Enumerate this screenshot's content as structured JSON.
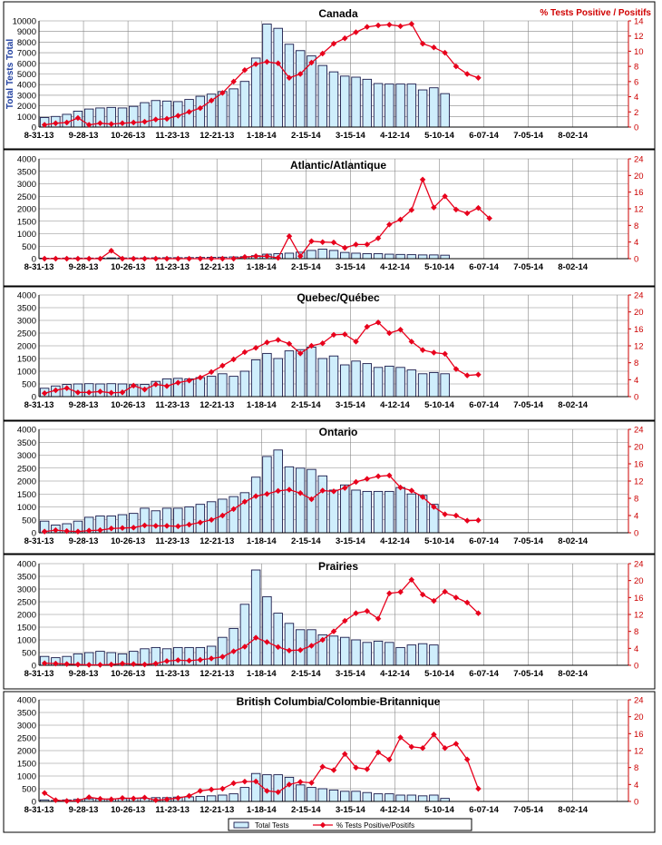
{
  "page": {
    "right_title": "% Tests Positive / Positifs",
    "y_axis_label": "Total Tests Total",
    "legend": {
      "bar_label": "Total Tests",
      "line_label": "% Tests Positive/Positifs"
    }
  },
  "colors": {
    "bar_fill": "#cfeefc",
    "bar_stroke": "#1a1a4a",
    "line": "#e8001c",
    "axis_right": "#cc0000"
  },
  "chart_data": [
    {
      "type": "bar+line",
      "title": "Canada",
      "x_tick_labels": [
        "8-31-13",
        "9-28-13",
        "10-26-13",
        "11-23-13",
        "12-21-13",
        "1-18-14",
        "2-15-14",
        "3-15-14",
        "4-12-14",
        "5-10-14",
        "6-07-14",
        "7-05-14",
        "8-02-14"
      ],
      "weeks": 53,
      "left_axis": {
        "min": 0,
        "max": 10000,
        "step": 1000
      },
      "right_axis": {
        "min": 0,
        "max": 14,
        "step": 2
      },
      "total_tests": [
        900,
        1000,
        1200,
        1500,
        1700,
        1800,
        1850,
        1800,
        1950,
        2300,
        2500,
        2450,
        2400,
        2600,
        2900,
        3100,
        3350,
        3600,
        4300,
        6500,
        9700,
        9300,
        7800,
        7200,
        6700,
        5800,
        5200,
        4800,
        4700,
        4500,
        4100,
        4050,
        4050,
        4050,
        3500,
        3700,
        3150
      ],
      "pct_positive": [
        0.3,
        0.5,
        0.6,
        1.2,
        0.3,
        0.5,
        0.4,
        0.5,
        0.6,
        0.7,
        1.0,
        1.1,
        1.5,
        2.0,
        2.5,
        3.5,
        4.5,
        6.0,
        7.5,
        8.3,
        8.6,
        8.4,
        6.5,
        7.0,
        8.5,
        9.7,
        11.0,
        11.7,
        12.5,
        13.2,
        13.4,
        13.5,
        13.3,
        13.6,
        11.0,
        10.5,
        9.8,
        8.0,
        7.0,
        6.5
      ]
    },
    {
      "type": "bar+line",
      "title": "Atlantic/Atlantique",
      "x_tick_labels": [
        "8-31-13",
        "9-28-13",
        "10-26-13",
        "11-23-13",
        "12-21-13",
        "1-18-14",
        "2-15-14",
        "3-15-14",
        "4-12-14",
        "5-10-14",
        "6-07-14",
        "7-05-14",
        "8-02-14"
      ],
      "weeks": 53,
      "left_axis": {
        "min": 0,
        "max": 4000,
        "step": 500
      },
      "right_axis": {
        "min": 0,
        "max": 24,
        "step": 4
      },
      "total_tests": [
        20,
        20,
        25,
        25,
        25,
        25,
        30,
        30,
        30,
        30,
        35,
        40,
        40,
        45,
        50,
        55,
        60,
        70,
        80,
        120,
        180,
        200,
        220,
        260,
        330,
        380,
        330,
        250,
        220,
        200,
        200,
        180,
        170,
        160,
        150,
        150,
        140
      ],
      "pct_positive": [
        0,
        0,
        0,
        0,
        0,
        0,
        1.9,
        0,
        0,
        0,
        0,
        0,
        0,
        0,
        0,
        0,
        0,
        0,
        0.4,
        0.6,
        0.6,
        0.2,
        5.4,
        0.6,
        4.2,
        4.0,
        3.9,
        2.6,
        3.4,
        3.4,
        4.9,
        8.2,
        9.4,
        11.7,
        19.0,
        12.3,
        15.0,
        11.8,
        10.9,
        12.2,
        9.7
      ]
    },
    {
      "type": "bar+line",
      "title": "Quebec/Québec",
      "x_tick_labels": [
        "8-31-13",
        "9-28-13",
        "10-26-13",
        "11-23-13",
        "12-21-13",
        "1-18-14",
        "2-15-14",
        "3-15-14",
        "4-12-14",
        "5-10-14",
        "6-07-14",
        "7-05-14",
        "8-02-14"
      ],
      "weeks": 53,
      "left_axis": {
        "min": 0,
        "max": 4000,
        "step": 500
      },
      "right_axis": {
        "min": 0,
        "max": 24,
        "step": 4
      },
      "total_tests": [
        330,
        420,
        480,
        500,
        510,
        500,
        510,
        500,
        470,
        480,
        600,
        700,
        720,
        700,
        750,
        800,
        900,
        800,
        1000,
        1450,
        1700,
        1500,
        1800,
        1850,
        1950,
        1500,
        1600,
        1250,
        1400,
        1300,
        1150,
        1200,
        1150,
        1050,
        900,
        950,
        900
      ],
      "pct_positive": [
        0.8,
        1.5,
        2.0,
        1.0,
        1.0,
        1.2,
        0.9,
        1.0,
        2.6,
        1.7,
        2.9,
        2.5,
        3.3,
        3.8,
        4.5,
        5.8,
        7.3,
        8.8,
        10.5,
        11.5,
        12.8,
        13.4,
        12.5,
        10.2,
        12.0,
        12.6,
        14.6,
        14.7,
        13.0,
        16.5,
        17.5,
        15.0,
        15.8,
        13.0,
        11.0,
        10.4,
        10.1,
        6.5,
        5.0,
        5.2
      ]
    },
    {
      "type": "bar+line",
      "title": "Ontario",
      "x_tick_labels": [
        "8-31-13",
        "9-28-13",
        "10-26-13",
        "11-23-13",
        "12-21-13",
        "1-18-14",
        "2-15-14",
        "3-15-14",
        "4-12-14",
        "5-10-14",
        "6-07-14",
        "7-05-14",
        "8-02-14"
      ],
      "weeks": 53,
      "left_axis": {
        "min": 0,
        "max": 4000,
        "step": 500
      },
      "right_axis": {
        "min": 0,
        "max": 24,
        "step": 4
      },
      "total_tests": [
        450,
        300,
        350,
        450,
        600,
        650,
        650,
        700,
        750,
        950,
        850,
        950,
        950,
        1000,
        1100,
        1200,
        1300,
        1400,
        1550,
        2150,
        2950,
        3200,
        2550,
        2500,
        2450,
        2200,
        1650,
        1850,
        1650,
        1600,
        1600,
        1600,
        1750,
        1500,
        1450,
        1100
      ],
      "pct_positive": [
        0.3,
        0.6,
        0.4,
        0.3,
        0.5,
        0.6,
        1.0,
        1.1,
        1.2,
        1.7,
        1.6,
        1.6,
        1.5,
        1.9,
        2.4,
        3.0,
        4.0,
        5.5,
        7.2,
        8.5,
        9.0,
        9.7,
        10.0,
        9.2,
        7.8,
        9.8,
        9.6,
        10.4,
        11.8,
        12.5,
        13.1,
        13.3,
        10.5,
        9.8,
        8.3,
        6.0,
        4.3,
        4.0,
        2.8,
        2.9
      ]
    },
    {
      "type": "bar+line",
      "title": "Prairies",
      "x_tick_labels": [
        "8-31-13",
        "9-28-13",
        "10-26-13",
        "11-23-13",
        "12-21-13",
        "1-18-14",
        "2-15-14",
        "3-15-14",
        "4-12-14",
        "5-10-14",
        "6-07-14",
        "7-05-14",
        "8-02-14"
      ],
      "weeks": 53,
      "left_axis": {
        "min": 0,
        "max": 4000,
        "step": 500
      },
      "right_axis": {
        "min": 0,
        "max": 24,
        "step": 4
      },
      "total_tests": [
        350,
        300,
        350,
        450,
        500,
        550,
        500,
        450,
        550,
        650,
        700,
        650,
        700,
        700,
        700,
        750,
        1100,
        1450,
        2400,
        3750,
        2700,
        2050,
        1650,
        1400,
        1400,
        1200,
        1150,
        1100,
        1000,
        900,
        950,
        900,
        700,
        800,
        850,
        800
      ],
      "pct_positive": [
        0.5,
        0.4,
        0.3,
        0.2,
        0.1,
        0.1,
        0.2,
        0.4,
        0.3,
        0.2,
        0.4,
        1.0,
        1.2,
        1.1,
        1.3,
        1.6,
        2.0,
        3.3,
        4.4,
        6.5,
        5.5,
        4.3,
        3.5,
        3.6,
        4.6,
        6.0,
        8.0,
        10.5,
        12.3,
        12.8,
        11.0,
        17.0,
        17.3,
        20.2,
        16.7,
        15.2,
        17.4,
        16.0,
        14.8,
        12.3
      ]
    },
    {
      "type": "bar+line",
      "title": "British Columbia/Colombie-Britannique",
      "x_tick_labels": [
        "8-31-13",
        "9-28-13",
        "10-26-13",
        "11-23-13",
        "12-21-13",
        "1-18-14",
        "2-15-14",
        "3-15-14",
        "4-12-14",
        "5-10-14",
        "6-07-14",
        "7-05-14",
        "8-02-14"
      ],
      "weeks": 53,
      "left_axis": {
        "min": 0,
        "max": 4000,
        "step": 500
      },
      "right_axis": {
        "min": 0,
        "max": 24,
        "step": 4
      },
      "total_tests": [
        60,
        40,
        60,
        80,
        100,
        100,
        100,
        110,
        130,
        120,
        150,
        150,
        170,
        180,
        200,
        220,
        250,
        300,
        550,
        1100,
        1050,
        1050,
        950,
        650,
        550,
        500,
        450,
        400,
        400,
        350,
        300,
        300,
        250,
        250,
        220,
        250,
        120
      ],
      "pct_positive": [
        2.0,
        0.3,
        0.1,
        0.2,
        1.0,
        0.6,
        0.5,
        0.8,
        0.7,
        0.9,
        0.3,
        0.5,
        0.8,
        1.3,
        2.5,
        2.8,
        3.0,
        4.3,
        4.7,
        4.7,
        2.5,
        2.2,
        4.0,
        4.6,
        4.4,
        8.2,
        7.4,
        11.2,
        8.0,
        7.6,
        11.6,
        9.9,
        15.1,
        12.9,
        12.6,
        15.8,
        12.6,
        13.6,
        9.9,
        3.0
      ]
    }
  ]
}
